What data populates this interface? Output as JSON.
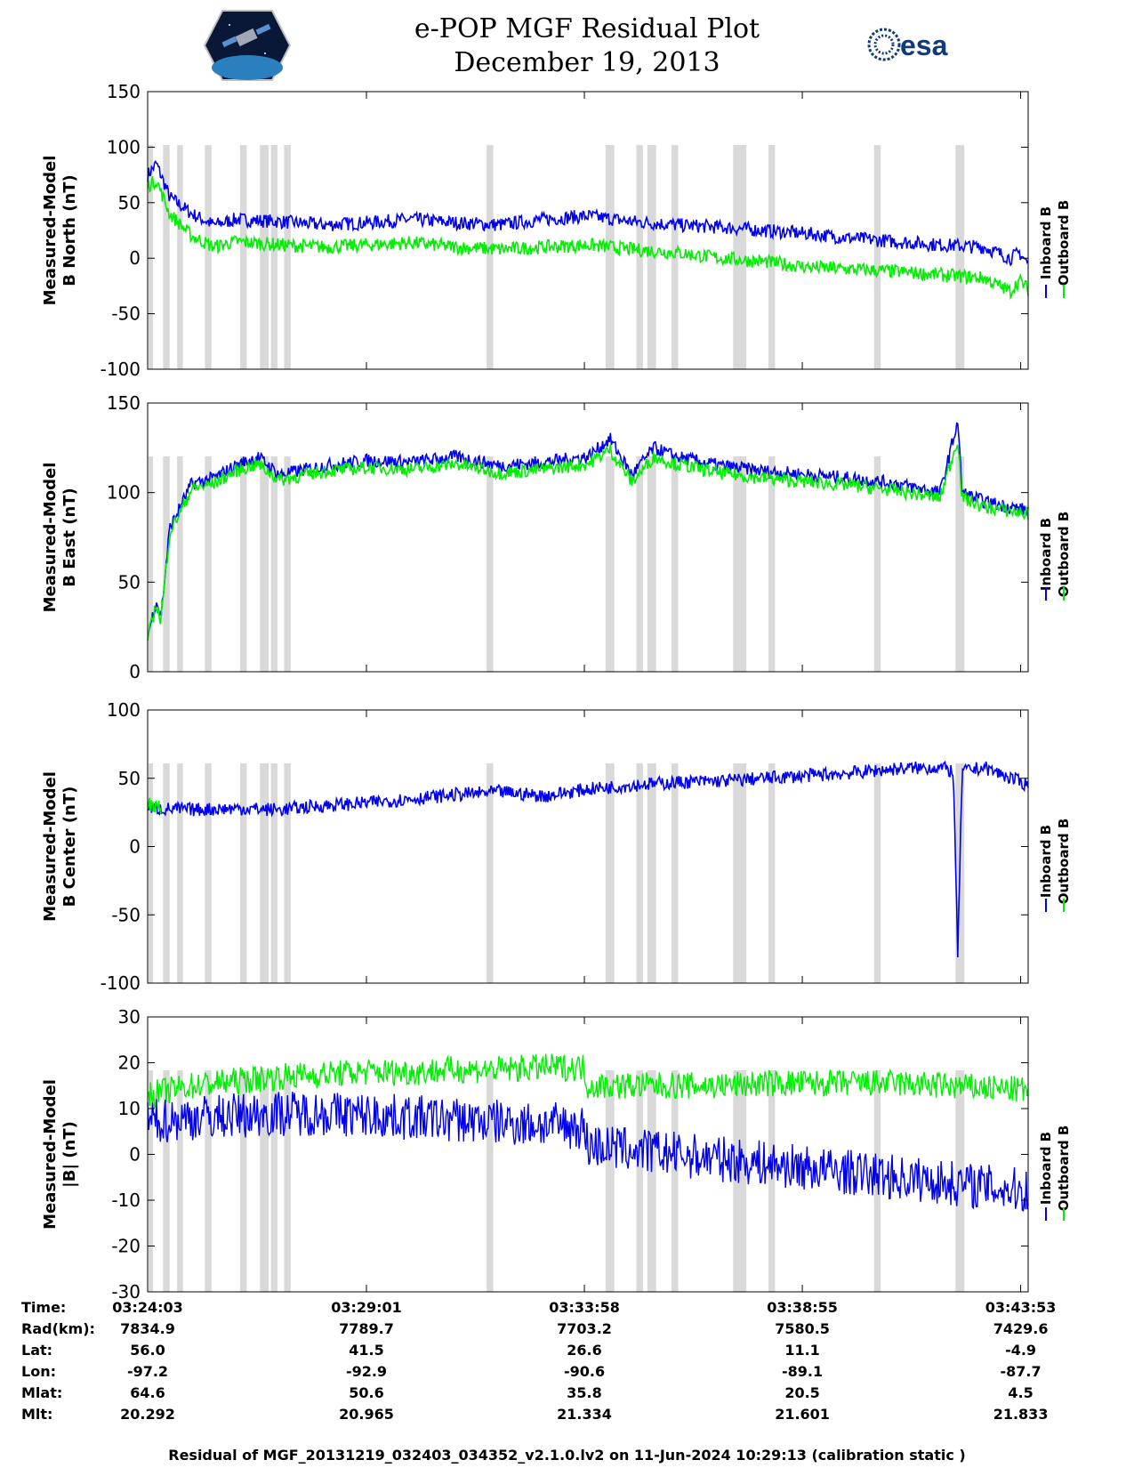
{
  "header": {
    "title": "e-POP MGF Residual Plot",
    "subtitle": "December 19, 2013",
    "logo_left": "cassiope-mission-patch",
    "logo_right_text": "esa"
  },
  "colors": {
    "inboard": "#0000ee",
    "outboard": "#00ee00",
    "gap_shade": "#d9d9d9"
  },
  "chart_data": [
    {
      "type": "line",
      "ylabel": [
        "Measured-Model",
        "B North (nT)"
      ],
      "ylim": [
        -100,
        150
      ],
      "yticks": [
        150,
        100,
        50,
        0,
        -50,
        -100
      ],
      "series": [
        {
          "name": "Inboard B",
          "color": "#0000ee",
          "x": [
            0,
            0.2,
            0.5,
            1,
            1.5,
            2,
            3,
            4,
            5,
            6,
            7,
            8,
            9,
            10,
            11,
            12,
            13,
            14,
            15,
            16,
            17,
            18,
            19,
            19.6,
            19.8,
            20
          ],
          "y": [
            75,
            85,
            55,
            40,
            30,
            35,
            33,
            30,
            32,
            35,
            32,
            30,
            35,
            38,
            33,
            30,
            28,
            25,
            22,
            18,
            15,
            12,
            10,
            0,
            5,
            -5
          ]
        },
        {
          "name": "Outboard B",
          "color": "#00ee00",
          "x": [
            0,
            0.2,
            0.5,
            1,
            1.5,
            2,
            3,
            4,
            5,
            6,
            7,
            8,
            9,
            10,
            11,
            12,
            13,
            14,
            15,
            16,
            17,
            18,
            19,
            19.6,
            19.8,
            20
          ],
          "y": [
            65,
            70,
            40,
            20,
            10,
            15,
            12,
            10,
            12,
            14,
            10,
            8,
            10,
            12,
            8,
            5,
            0,
            -3,
            -8,
            -10,
            -12,
            -15,
            -18,
            -30,
            -20,
            -28
          ]
        }
      ]
    },
    {
      "type": "line",
      "ylabel": [
        "Measured-Model",
        "B East (nT)"
      ],
      "ylim": [
        0,
        150
      ],
      "yticks": [
        150,
        100,
        50,
        0
      ],
      "series": [
        {
          "name": "Inboard B",
          "color": "#0000ee",
          "x": [
            0,
            0.2,
            0.3,
            0.5,
            0.8,
            1,
            1.5,
            2,
            2.5,
            3,
            4,
            5,
            6,
            7,
            8,
            9,
            10,
            10.5,
            11,
            11.5,
            12,
            13,
            14,
            15,
            16,
            17,
            18,
            18.4,
            18.5,
            19,
            20
          ],
          "y": [
            20,
            40,
            30,
            80,
            95,
            105,
            108,
            115,
            120,
            110,
            115,
            118,
            117,
            120,
            115,
            117,
            120,
            130,
            110,
            125,
            120,
            115,
            112,
            110,
            108,
            105,
            100,
            140,
            100,
            95,
            90
          ]
        },
        {
          "name": "Outboard B",
          "color": "#00ee00",
          "x": [
            0,
            0.2,
            0.3,
            0.5,
            0.8,
            1,
            1.5,
            2,
            2.5,
            3,
            4,
            5,
            6,
            7,
            8,
            9,
            10,
            10.5,
            11,
            11.5,
            12,
            13,
            14,
            15,
            16,
            17,
            18,
            18.4,
            18.5,
            19,
            20
          ],
          "y": [
            18,
            38,
            28,
            78,
            92,
            102,
            105,
            112,
            116,
            107,
            112,
            114,
            113,
            116,
            111,
            113,
            116,
            124,
            106,
            120,
            116,
            111,
            108,
            106,
            104,
            101,
            97,
            130,
            97,
            92,
            88
          ]
        }
      ]
    },
    {
      "type": "line",
      "ylabel": [
        "Measured-Model",
        "B Center (nT)"
      ],
      "ylim": [
        -100,
        100
      ],
      "yticks": [
        100,
        50,
        0,
        -50,
        -100
      ],
      "series": [
        {
          "name": "Inboard B",
          "color": "#0000ee",
          "x": [
            0,
            1,
            2,
            3,
            4,
            5,
            6,
            7,
            8,
            9,
            10,
            11,
            12,
            13,
            14,
            15,
            16,
            17,
            18,
            18.3,
            18.4,
            18.5,
            19,
            20
          ],
          "y": [
            28,
            27,
            28,
            27,
            30,
            32,
            35,
            38,
            40,
            37,
            42,
            45,
            47,
            48,
            50,
            52,
            54,
            57,
            58,
            55,
            -80,
            55,
            58,
            45
          ]
        },
        {
          "name": "Outboard B",
          "color": "#00ee00",
          "x": [
            0,
            0.3
          ],
          "y": [
            32,
            28
          ]
        }
      ]
    },
    {
      "type": "line",
      "ylabel": [
        "Measured-Model",
        "|B| (nT)"
      ],
      "ylim": [
        -30,
        30
      ],
      "yticks": [
        30,
        20,
        10,
        0,
        -10,
        -20,
        -30
      ],
      "series": [
        {
          "name": "Outboard B",
          "color": "#00ee00",
          "x": [
            0,
            1,
            2,
            3,
            4,
            5,
            6,
            7,
            8,
            9,
            9.9,
            10,
            11,
            12,
            13,
            14,
            15,
            16,
            17,
            18,
            19,
            20
          ],
          "y": [
            13,
            15,
            16,
            17,
            17.5,
            18,
            18,
            18.5,
            18.5,
            19,
            19,
            15,
            15,
            15,
            15,
            15.5,
            15.5,
            15.5,
            15.5,
            15,
            14.5,
            14
          ]
        },
        {
          "name": "Inboard B",
          "color": "#0000ee",
          "x": [
            0,
            1,
            2,
            3,
            4,
            5,
            6,
            7,
            8,
            9,
            9.9,
            10,
            11,
            12,
            13,
            14,
            15,
            16,
            17,
            18,
            19,
            20
          ],
          "y": [
            7,
            8,
            8.5,
            9,
            9,
            8.5,
            8,
            7.5,
            7,
            6.5,
            6,
            2,
            1,
            0,
            -1,
            -2,
            -3,
            -4,
            -5,
            -6,
            -7,
            -8
          ]
        }
      ]
    }
  ],
  "x_axis": {
    "ticks_min": [
      0,
      4.97,
      9.92,
      14.87,
      19.83
    ],
    "gaps_min": [
      [
        0.02,
        0.12
      ],
      [
        0.35,
        0.5
      ],
      [
        0.67,
        0.8
      ],
      [
        1.3,
        1.45
      ],
      [
        2.1,
        2.25
      ],
      [
        2.55,
        2.75
      ],
      [
        2.8,
        2.95
      ],
      [
        3.1,
        3.25
      ],
      [
        7.7,
        7.85
      ],
      [
        10.4,
        10.6
      ],
      [
        11.1,
        11.25
      ],
      [
        11.35,
        11.55
      ],
      [
        11.9,
        12.05
      ],
      [
        13.3,
        13.6
      ],
      [
        14.1,
        14.25
      ],
      [
        16.5,
        16.65
      ],
      [
        18.35,
        18.55
      ]
    ],
    "xlim": [
      0,
      20
    ]
  },
  "legend": {
    "inboard": "Inboard B",
    "outboard": "Outboard B"
  },
  "info_table": {
    "rows": [
      {
        "label": "Time:",
        "values": [
          "03:24:03",
          "03:29:01",
          "03:33:58",
          "03:38:55",
          "03:43:53"
        ]
      },
      {
        "label": "Rad(km):",
        "values": [
          "7834.9",
          "7789.7",
          "7703.2",
          "7580.5",
          "7429.6"
        ]
      },
      {
        "label": "Lat:",
        "values": [
          "56.0",
          "41.5",
          "26.6",
          "11.1",
          "-4.9"
        ]
      },
      {
        "label": "Lon:",
        "values": [
          "-97.2",
          "-92.9",
          "-90.6",
          "-89.1",
          "-87.7"
        ]
      },
      {
        "label": "Mlat:",
        "values": [
          "64.6",
          "50.6",
          "35.8",
          "20.5",
          "4.5"
        ]
      },
      {
        "label": "Mlt:",
        "values": [
          "20.292",
          "20.965",
          "21.334",
          "21.601",
          "21.833"
        ]
      }
    ]
  },
  "footer": "Residual of MGF_20131219_032403_034352_v2.1.0.lv2 on 11-Jun-2024 10:29:13 (calibration static )"
}
